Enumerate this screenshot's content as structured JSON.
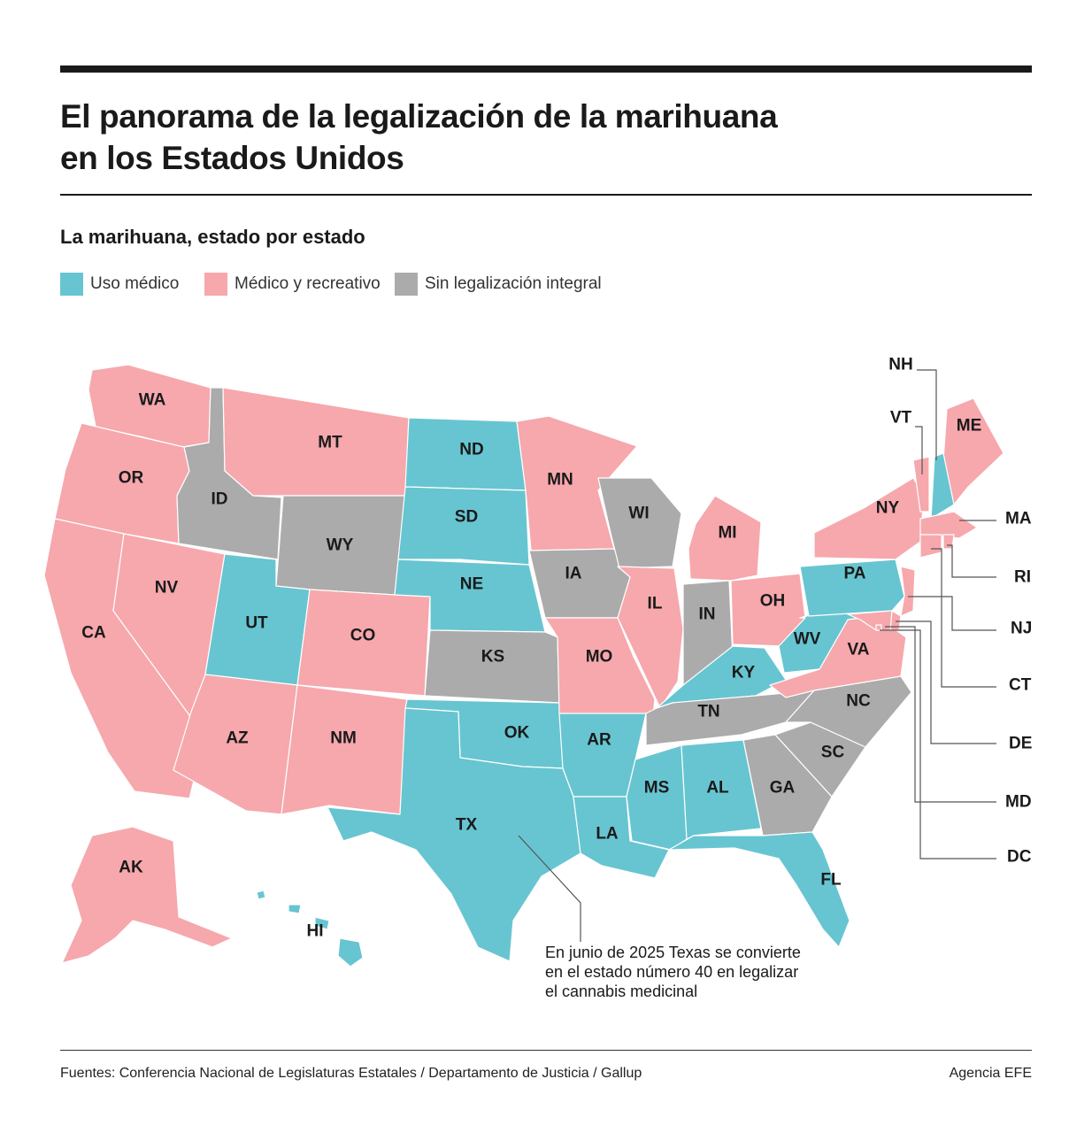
{
  "title_line1": "El panorama de la legalización de la marihuana",
  "title_line2": "en los Estados Unidos",
  "subtitle": "La marihuana, estado por estado",
  "legend": {
    "medical": {
      "label": "Uso médico",
      "color": "#67c5d1"
    },
    "recreational": {
      "label": "Médico y recreativo",
      "color": "#f6a8ad"
    },
    "none": {
      "label": "Sin legalización integral",
      "color": "#ababab"
    }
  },
  "states": {
    "WA": {
      "label": "WA",
      "status": "recreational"
    },
    "OR": {
      "label": "OR",
      "status": "recreational"
    },
    "CA": {
      "label": "CA",
      "status": "recreational"
    },
    "ID": {
      "label": "ID",
      "status": "none"
    },
    "NV": {
      "label": "NV",
      "status": "recreational"
    },
    "MT": {
      "label": "MT",
      "status": "recreational"
    },
    "WY": {
      "label": "WY",
      "status": "none"
    },
    "UT": {
      "label": "UT",
      "status": "medical"
    },
    "CO": {
      "label": "CO",
      "status": "recreational"
    },
    "AZ": {
      "label": "AZ",
      "status": "recreational"
    },
    "NM": {
      "label": "NM",
      "status": "recreational"
    },
    "ND": {
      "label": "ND",
      "status": "medical"
    },
    "SD": {
      "label": "SD",
      "status": "medical"
    },
    "NE": {
      "label": "NE",
      "status": "medical"
    },
    "KS": {
      "label": "KS",
      "status": "none"
    },
    "OK": {
      "label": "OK",
      "status": "medical"
    },
    "TX": {
      "label": "TX",
      "status": "medical"
    },
    "MN": {
      "label": "MN",
      "status": "recreational"
    },
    "IA": {
      "label": "IA",
      "status": "none"
    },
    "MO": {
      "label": "MO",
      "status": "recreational"
    },
    "AR": {
      "label": "AR",
      "status": "medical"
    },
    "LA": {
      "label": "LA",
      "status": "medical"
    },
    "WI": {
      "label": "WI",
      "status": "none"
    },
    "IL": {
      "label": "IL",
      "status": "recreational"
    },
    "MI": {
      "label": "MI",
      "status": "recreational"
    },
    "IN": {
      "label": "IN",
      "status": "none"
    },
    "OH": {
      "label": "OH",
      "status": "recreational"
    },
    "KY": {
      "label": "KY",
      "status": "medical"
    },
    "TN": {
      "label": "TN",
      "status": "none"
    },
    "MS": {
      "label": "MS",
      "status": "medical"
    },
    "AL": {
      "label": "AL",
      "status": "medical"
    },
    "GA": {
      "label": "GA",
      "status": "none"
    },
    "FL": {
      "label": "FL",
      "status": "medical"
    },
    "SC": {
      "label": "SC",
      "status": "none"
    },
    "NC": {
      "label": "NC",
      "status": "none"
    },
    "VA": {
      "label": "VA",
      "status": "recreational"
    },
    "WV": {
      "label": "WV",
      "status": "medical"
    },
    "PA": {
      "label": "PA",
      "status": "medical"
    },
    "NY": {
      "label": "NY",
      "status": "recreational"
    },
    "ME": {
      "label": "ME",
      "status": "recreational"
    },
    "AK": {
      "label": "AK",
      "status": "recreational"
    },
    "HI": {
      "label": "HI",
      "status": "medical"
    },
    "NH": {
      "label": "NH",
      "status": "medical"
    },
    "VT": {
      "label": "VT",
      "status": "recreational"
    },
    "MA": {
      "label": "MA",
      "status": "recreational"
    },
    "RI": {
      "label": "RI",
      "status": "recreational"
    },
    "NJ": {
      "label": "NJ",
      "status": "recreational"
    },
    "CT": {
      "label": "CT",
      "status": "recreational"
    },
    "DE": {
      "label": "DE",
      "status": "recreational"
    },
    "MD": {
      "label": "MD",
      "status": "recreational"
    },
    "DC": {
      "label": "DC",
      "status": "recreational"
    }
  },
  "annotation": {
    "line1": "En junio de 2025 Texas se convierte",
    "line2": "en el estado número 40 en legalizar",
    "line3": "el cannabis medicinal"
  },
  "sources": "Fuentes: Conferencia Nacional de Legislaturas Estatales / Departamento de Justicia /  Gallup",
  "agency": "Agencia EFE"
}
